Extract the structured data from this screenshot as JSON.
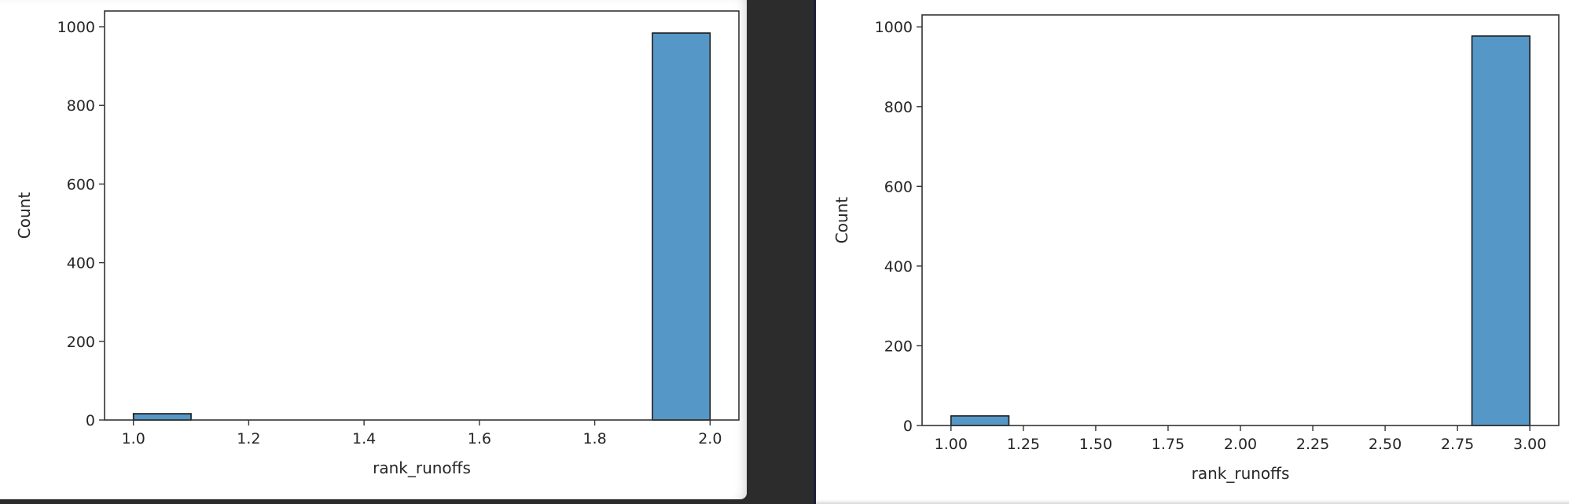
{
  "colors": {
    "bar_fill": "#5597c6",
    "bar_edge": "#1a1a1a",
    "frame": "#333333"
  },
  "chart_data": [
    {
      "type": "bar",
      "title": "",
      "xlabel": "rank_runoffs",
      "ylabel": "Count",
      "xlim": [
        0.95,
        2.05
      ],
      "ylim": [
        0,
        1040
      ],
      "x_ticks": [
        "1.0",
        "1.2",
        "1.4",
        "1.6",
        "1.8",
        "2.0"
      ],
      "x_tick_values": [
        1.0,
        1.2,
        1.4,
        1.6,
        1.8,
        2.0
      ],
      "y_ticks": [
        "0",
        "200",
        "400",
        "600",
        "800",
        "1000"
      ],
      "y_tick_values": [
        0,
        200,
        400,
        600,
        800,
        1000
      ],
      "bins": [
        {
          "x0": 1.0,
          "x1": 1.1,
          "count": 16
        },
        {
          "x0": 1.9,
          "x1": 2.0,
          "count": 984
        }
      ],
      "grid": false,
      "legend": "none"
    },
    {
      "type": "bar",
      "title": "",
      "xlabel": "rank_runoffs",
      "ylabel": "Count",
      "xlim": [
        0.9,
        3.1
      ],
      "ylim": [
        0,
        1030
      ],
      "x_ticks": [
        "1.00",
        "1.25",
        "1.50",
        "1.75",
        "2.00",
        "2.25",
        "2.50",
        "2.75",
        "3.00"
      ],
      "x_tick_values": [
        1.0,
        1.25,
        1.5,
        1.75,
        2.0,
        2.25,
        2.5,
        2.75,
        3.0
      ],
      "y_ticks": [
        "0",
        "200",
        "400",
        "600",
        "800",
        "1000"
      ],
      "y_tick_values": [
        0,
        200,
        400,
        600,
        800,
        1000
      ],
      "bins": [
        {
          "x0": 1.0,
          "x1": 1.2,
          "count": 24
        },
        {
          "x0": 2.8,
          "x1": 3.0,
          "count": 977
        }
      ],
      "grid": false,
      "legend": "none"
    }
  ]
}
